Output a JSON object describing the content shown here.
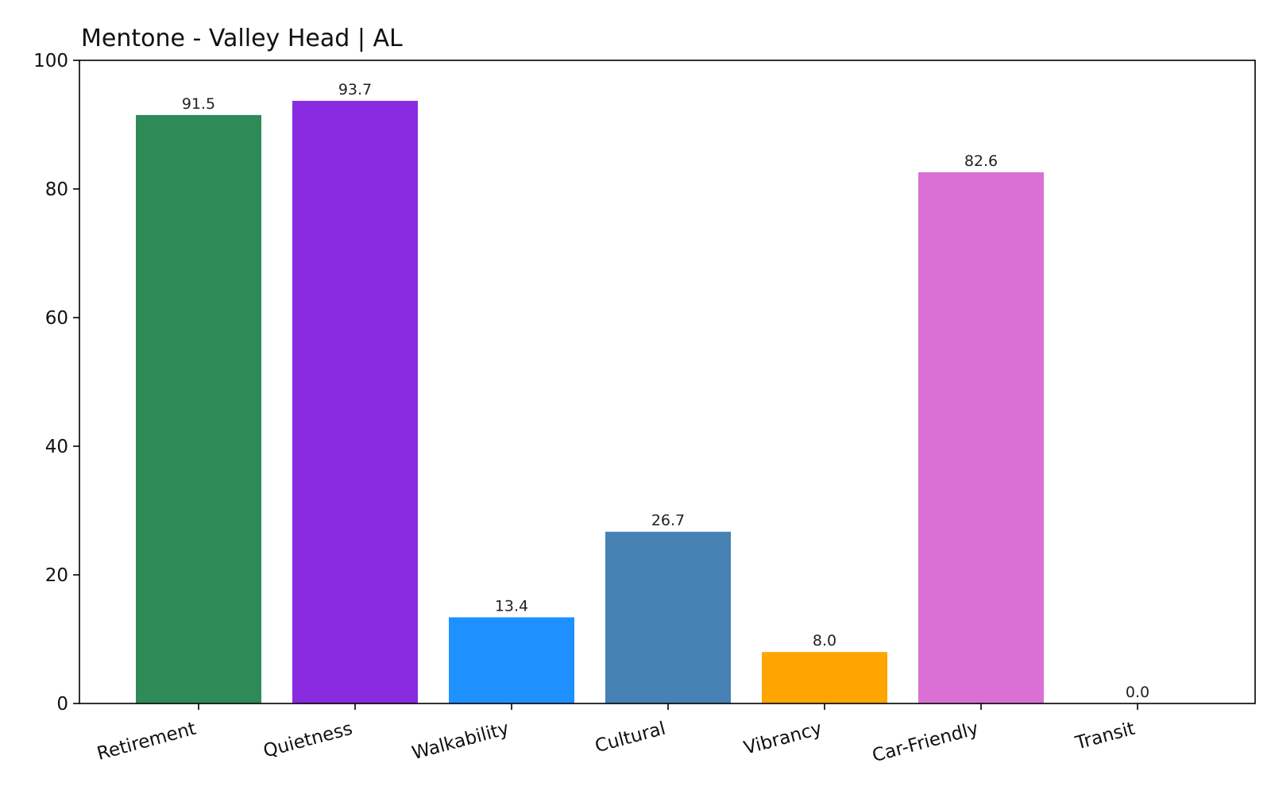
{
  "chart_data": {
    "type": "bar",
    "title": "Mentone - Valley Head | AL",
    "xlabel": "",
    "ylabel": "",
    "categories": [
      "Retirement",
      "Quietness",
      "Walkability",
      "Cultural",
      "Vibrancy",
      "Car-Friendly",
      "Transit"
    ],
    "values": [
      91.5,
      93.7,
      13.4,
      26.7,
      8.0,
      82.6,
      0.0
    ],
    "value_labels": [
      "91.5",
      "93.7",
      "13.4",
      "26.7",
      "8.0",
      "82.6",
      "0.0"
    ],
    "colors": [
      "#2e8b57",
      "#8a2be2",
      "#1e90ff",
      "#4682b4",
      "#ffa500",
      "#da70d6",
      "#808080"
    ],
    "ylim": [
      0,
      100
    ],
    "yticks": [
      0,
      20,
      40,
      60,
      80,
      100
    ],
    "ytick_labels": [
      "0",
      "20",
      "40",
      "60",
      "80",
      "100"
    ],
    "grid": false,
    "legend": "none"
  }
}
